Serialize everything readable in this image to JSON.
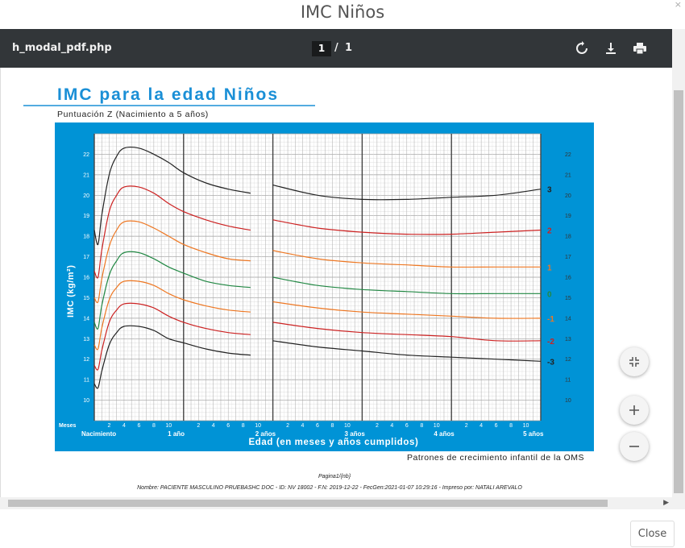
{
  "modal": {
    "title": "IMC Niños",
    "close_label": "Close",
    "close_x": "×"
  },
  "toolbar": {
    "filename": "h_modal_pdf.php",
    "page_current": "1",
    "page_sep": "/",
    "page_total": "1",
    "icons": [
      "rotate-icon",
      "download-icon",
      "print-icon"
    ]
  },
  "chart_data": {
    "type": "line",
    "title": "IMC para la edad Niños",
    "subtitle": "Puntuación Z (Nacimiento a 5 años)",
    "xlabel": "Edad (en meses y años cumplidos)",
    "ylabel": "IMC (kg/m²)",
    "source": "Patrones de crecimiento infantil de la OMS",
    "ylim": [
      9,
      23
    ],
    "yticks": [
      10,
      11,
      12,
      13,
      14,
      15,
      16,
      17,
      18,
      19,
      20,
      21,
      22
    ],
    "x_prefix_label": "Meses",
    "x_month_ticks": [
      "2",
      "4",
      "6",
      "8",
      "10"
    ],
    "x_year_labels": [
      "Nacimiento",
      "1 año",
      "2 años",
      "3 años",
      "4 años",
      "5 años"
    ],
    "xlim_months": [
      0,
      60
    ],
    "series": [
      {
        "name": "3",
        "color": "#222222",
        "x": [
          0,
          0.5,
          1,
          2,
          3,
          4,
          6,
          8,
          10,
          12,
          15,
          18,
          21,
          24,
          30,
          36,
          42,
          48,
          54,
          60
        ],
        "y": [
          18.3,
          17.6,
          19.0,
          21.0,
          21.9,
          22.3,
          22.3,
          22.0,
          21.6,
          21.1,
          20.6,
          20.3,
          20.1,
          20.5,
          20.0,
          19.8,
          19.8,
          19.9,
          20.0,
          20.3
        ]
      },
      {
        "name": "2",
        "color": "#cc2222",
        "x": [
          0,
          0.5,
          1,
          2,
          3,
          4,
          6,
          8,
          10,
          12,
          15,
          18,
          21,
          24,
          30,
          36,
          42,
          48,
          54,
          60
        ],
        "y": [
          16.3,
          16.0,
          17.3,
          19.2,
          20.0,
          20.4,
          20.4,
          20.1,
          19.6,
          19.2,
          18.8,
          18.5,
          18.3,
          18.8,
          18.4,
          18.2,
          18.1,
          18.1,
          18.2,
          18.3
        ]
      },
      {
        "name": "1",
        "color": "#ee7722",
        "x": [
          0,
          0.5,
          1,
          2,
          3,
          4,
          6,
          8,
          10,
          12,
          15,
          18,
          21,
          24,
          30,
          36,
          42,
          48,
          54,
          60
        ],
        "y": [
          15.0,
          14.8,
          15.9,
          17.5,
          18.3,
          18.7,
          18.7,
          18.4,
          18.0,
          17.6,
          17.2,
          16.9,
          16.8,
          17.3,
          16.9,
          16.7,
          16.6,
          16.5,
          16.5,
          16.5
        ]
      },
      {
        "name": "0",
        "color": "#228844",
        "x": [
          0,
          0.5,
          1,
          2,
          3,
          4,
          6,
          8,
          10,
          12,
          15,
          18,
          21,
          24,
          30,
          36,
          42,
          48,
          54,
          60
        ],
        "y": [
          13.8,
          13.5,
          14.6,
          16.1,
          16.8,
          17.2,
          17.2,
          16.9,
          16.5,
          16.2,
          15.8,
          15.6,
          15.5,
          16.0,
          15.6,
          15.4,
          15.3,
          15.2,
          15.2,
          15.2
        ]
      },
      {
        "name": "-1",
        "color": "#ee7722",
        "x": [
          0,
          0.5,
          1,
          2,
          3,
          4,
          6,
          8,
          10,
          12,
          15,
          18,
          21,
          24,
          30,
          36,
          42,
          48,
          54,
          60
        ],
        "y": [
          12.7,
          12.5,
          13.5,
          14.9,
          15.5,
          15.8,
          15.8,
          15.6,
          15.2,
          14.9,
          14.6,
          14.4,
          14.3,
          14.8,
          14.5,
          14.3,
          14.2,
          14.1,
          14.0,
          14.0
        ]
      },
      {
        "name": "-2",
        "color": "#cc2222",
        "x": [
          0,
          0.5,
          1,
          2,
          3,
          4,
          6,
          8,
          10,
          12,
          15,
          18,
          21,
          24,
          30,
          36,
          42,
          48,
          54,
          60
        ],
        "y": [
          11.7,
          11.5,
          12.4,
          13.8,
          14.4,
          14.7,
          14.7,
          14.5,
          14.1,
          13.8,
          13.5,
          13.3,
          13.2,
          13.8,
          13.5,
          13.3,
          13.2,
          13.1,
          12.9,
          12.9
        ]
      },
      {
        "name": "-3",
        "color": "#222222",
        "x": [
          0,
          0.5,
          1,
          2,
          3,
          4,
          6,
          8,
          10,
          12,
          15,
          18,
          21,
          24,
          30,
          36,
          42,
          48,
          54,
          60
        ],
        "y": [
          10.8,
          10.6,
          11.4,
          12.7,
          13.3,
          13.6,
          13.6,
          13.4,
          13.0,
          12.8,
          12.5,
          12.3,
          12.2,
          12.9,
          12.6,
          12.4,
          12.2,
          12.1,
          12.0,
          11.9
        ]
      }
    ]
  },
  "pdf_footer": {
    "page_label": "Pagina1/{nb}",
    "patient_line": "Nombre: PACIENTE MASCULINO PRUEBASHC DOC -  ID: NV 18002 - F.N: 2019-12-22 - FecGen:2021-01-07 10:29:16 - Impreso por: NATALI AREVALO"
  },
  "colors": {
    "toolbar_bg": "#323639",
    "chart_frame": "#0093d6",
    "title_blue": "#1a8fd6"
  }
}
